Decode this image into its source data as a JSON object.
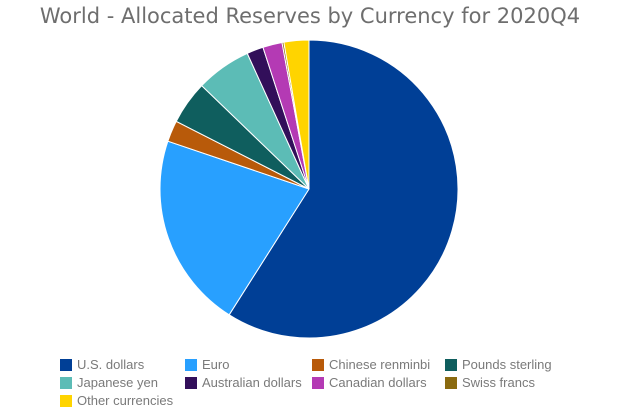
{
  "chart_data": {
    "type": "pie",
    "title": "World - Allocated Reserves by Currency for 2020Q4",
    "slices": [
      {
        "name": "U.S. dollars",
        "value": 59.0,
        "color": "#003f96"
      },
      {
        "name": "Euro",
        "value": 21.2,
        "color": "#28a0ff"
      },
      {
        "name": "Chinese renminbi",
        "value": 2.3,
        "color": "#b85a0a"
      },
      {
        "name": "Pounds sterling",
        "value": 4.7,
        "color": "#0f5e5e"
      },
      {
        "name": "Japanese yen",
        "value": 6.0,
        "color": "#5cbcb6"
      },
      {
        "name": "Australian dollars",
        "value": 1.8,
        "color": "#320f5a"
      },
      {
        "name": "Canadian dollars",
        "value": 2.1,
        "color": "#b43ab4"
      },
      {
        "name": "Swiss francs",
        "value": 0.2,
        "color": "#8a6a10"
      },
      {
        "name": "Other currencies",
        "value": 2.7,
        "color": "#ffd400"
      }
    ],
    "legend_placement": "bottom"
  }
}
